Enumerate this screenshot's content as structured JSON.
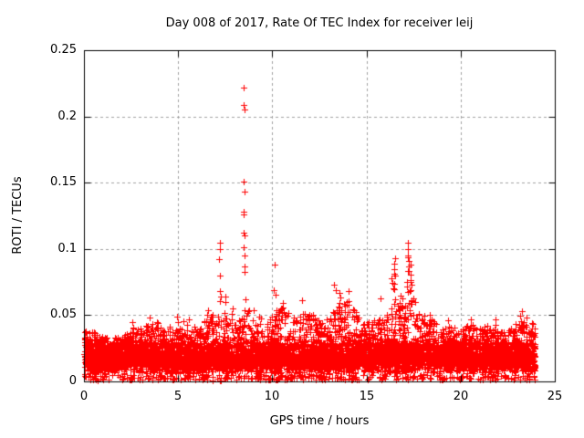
{
  "chart_data": {
    "type": "scatter",
    "title": "Day 008 of 2017, Rate Of TEC Index for receiver leij",
    "xlabel": "GPS time / hours",
    "ylabel": "ROTI / TECUs",
    "xlim": [
      0,
      25
    ],
    "ylim": [
      0,
      0.25
    ],
    "xticks": [
      0,
      5,
      10,
      15,
      20,
      25
    ],
    "xtick_labels": [
      "0",
      "5",
      "10",
      "15",
      "20",
      "25"
    ],
    "yticks": [
      0,
      0.05,
      0.1,
      0.15,
      0.2,
      0.25
    ],
    "ytick_labels": [
      "0",
      "0.05",
      "0.1",
      "0.15",
      "0.2",
      "0.25"
    ],
    "grid": true,
    "legend": "none",
    "marker": "plus",
    "colors": {
      "marker": "#ff0000",
      "grid": "#a0a0a0",
      "axis": "#000000",
      "background": "#ffffff",
      "text": "#000000"
    },
    "x_data_range": [
      0.02,
      23.95
    ],
    "baseline": {
      "n_points": 7600,
      "core_range": [
        0.005,
        0.03
      ],
      "floor": 0.001,
      "envelope_bin_hours": 0.5,
      "envelope_top": [
        0.04,
        0.036,
        0.034,
        0.033,
        0.036,
        0.044,
        0.042,
        0.046,
        0.041,
        0.044,
        0.046,
        0.04,
        0.044,
        0.05,
        0.052,
        0.056,
        0.048,
        0.055,
        0.05,
        0.047,
        0.055,
        0.057,
        0.046,
        0.056,
        0.048,
        0.044,
        0.058,
        0.062,
        0.06,
        0.044,
        0.046,
        0.048,
        0.052,
        0.065,
        0.07,
        0.056,
        0.048,
        0.046,
        0.04,
        0.042,
        0.042,
        0.044,
        0.042,
        0.044,
        0.04,
        0.044,
        0.048,
        0.05
      ]
    },
    "spikes": [
      {
        "x": 2.6,
        "peak": 0.045
      },
      {
        "x": 3.4,
        "peak": 0.048
      },
      {
        "x": 5.0,
        "peak": 0.049
      },
      {
        "x": 5.5,
        "peak": 0.047
      },
      {
        "x": 6.6,
        "peak": 0.054
      },
      {
        "x": 7.2,
        "peak": 0.068
      },
      {
        "x": 7.5,
        "peak": 0.064
      },
      {
        "x": 7.9,
        "peak": 0.055
      },
      {
        "x": 8.5,
        "peak": 0.095
      },
      {
        "x": 9.0,
        "peak": 0.054
      },
      {
        "x": 10.15,
        "peak": 0.069
      },
      {
        "x": 10.5,
        "peak": 0.059
      },
      {
        "x": 11.5,
        "peak": 0.061
      },
      {
        "x": 12.2,
        "peak": 0.05
      },
      {
        "x": 13.35,
        "peak": 0.073
      },
      {
        "x": 13.55,
        "peak": 0.067
      },
      {
        "x": 14.0,
        "peak": 0.068
      },
      {
        "x": 14.3,
        "peak": 0.054
      },
      {
        "x": 16.35,
        "peak": 0.078
      },
      {
        "x": 16.5,
        "peak": 0.085
      },
      {
        "x": 17.2,
        "peak": 0.095
      },
      {
        "x": 17.35,
        "peak": 0.088
      },
      {
        "x": 17.55,
        "peak": 0.06
      },
      {
        "x": 18.3,
        "peak": 0.05
      },
      {
        "x": 19.3,
        "peak": 0.046
      },
      {
        "x": 20.6,
        "peak": 0.047
      },
      {
        "x": 21.8,
        "peak": 0.047
      },
      {
        "x": 23.25,
        "peak": 0.053
      }
    ],
    "outlier_points": [
      {
        "x": 8.5,
        "y": 0.222
      },
      {
        "x": 8.5,
        "y": 0.209
      },
      {
        "x": 8.52,
        "y": 0.205
      },
      {
        "x": 8.5,
        "y": 0.151
      },
      {
        "x": 8.51,
        "y": 0.143
      },
      {
        "x": 8.5,
        "y": 0.128
      },
      {
        "x": 8.49,
        "y": 0.126
      },
      {
        "x": 8.5,
        "y": 0.112
      },
      {
        "x": 8.52,
        "y": 0.11
      },
      {
        "x": 8.5,
        "y": 0.101
      },
      {
        "x": 7.2,
        "y": 0.105
      },
      {
        "x": 7.21,
        "y": 0.1
      },
      {
        "x": 7.19,
        "y": 0.092
      },
      {
        "x": 7.2,
        "y": 0.08
      },
      {
        "x": 10.15,
        "y": 0.088
      },
      {
        "x": 15.75,
        "y": 0.063
      },
      {
        "x": 16.5,
        "y": 0.093
      },
      {
        "x": 16.48,
        "y": 0.089
      },
      {
        "x": 16.52,
        "y": 0.08
      },
      {
        "x": 17.2,
        "y": 0.105
      },
      {
        "x": 17.21,
        "y": 0.1
      },
      {
        "x": 17.2,
        "y": 0.094
      },
      {
        "x": 17.19,
        "y": 0.083
      },
      {
        "x": 17.35,
        "y": 0.088
      },
      {
        "x": 17.36,
        "y": 0.075
      }
    ]
  }
}
